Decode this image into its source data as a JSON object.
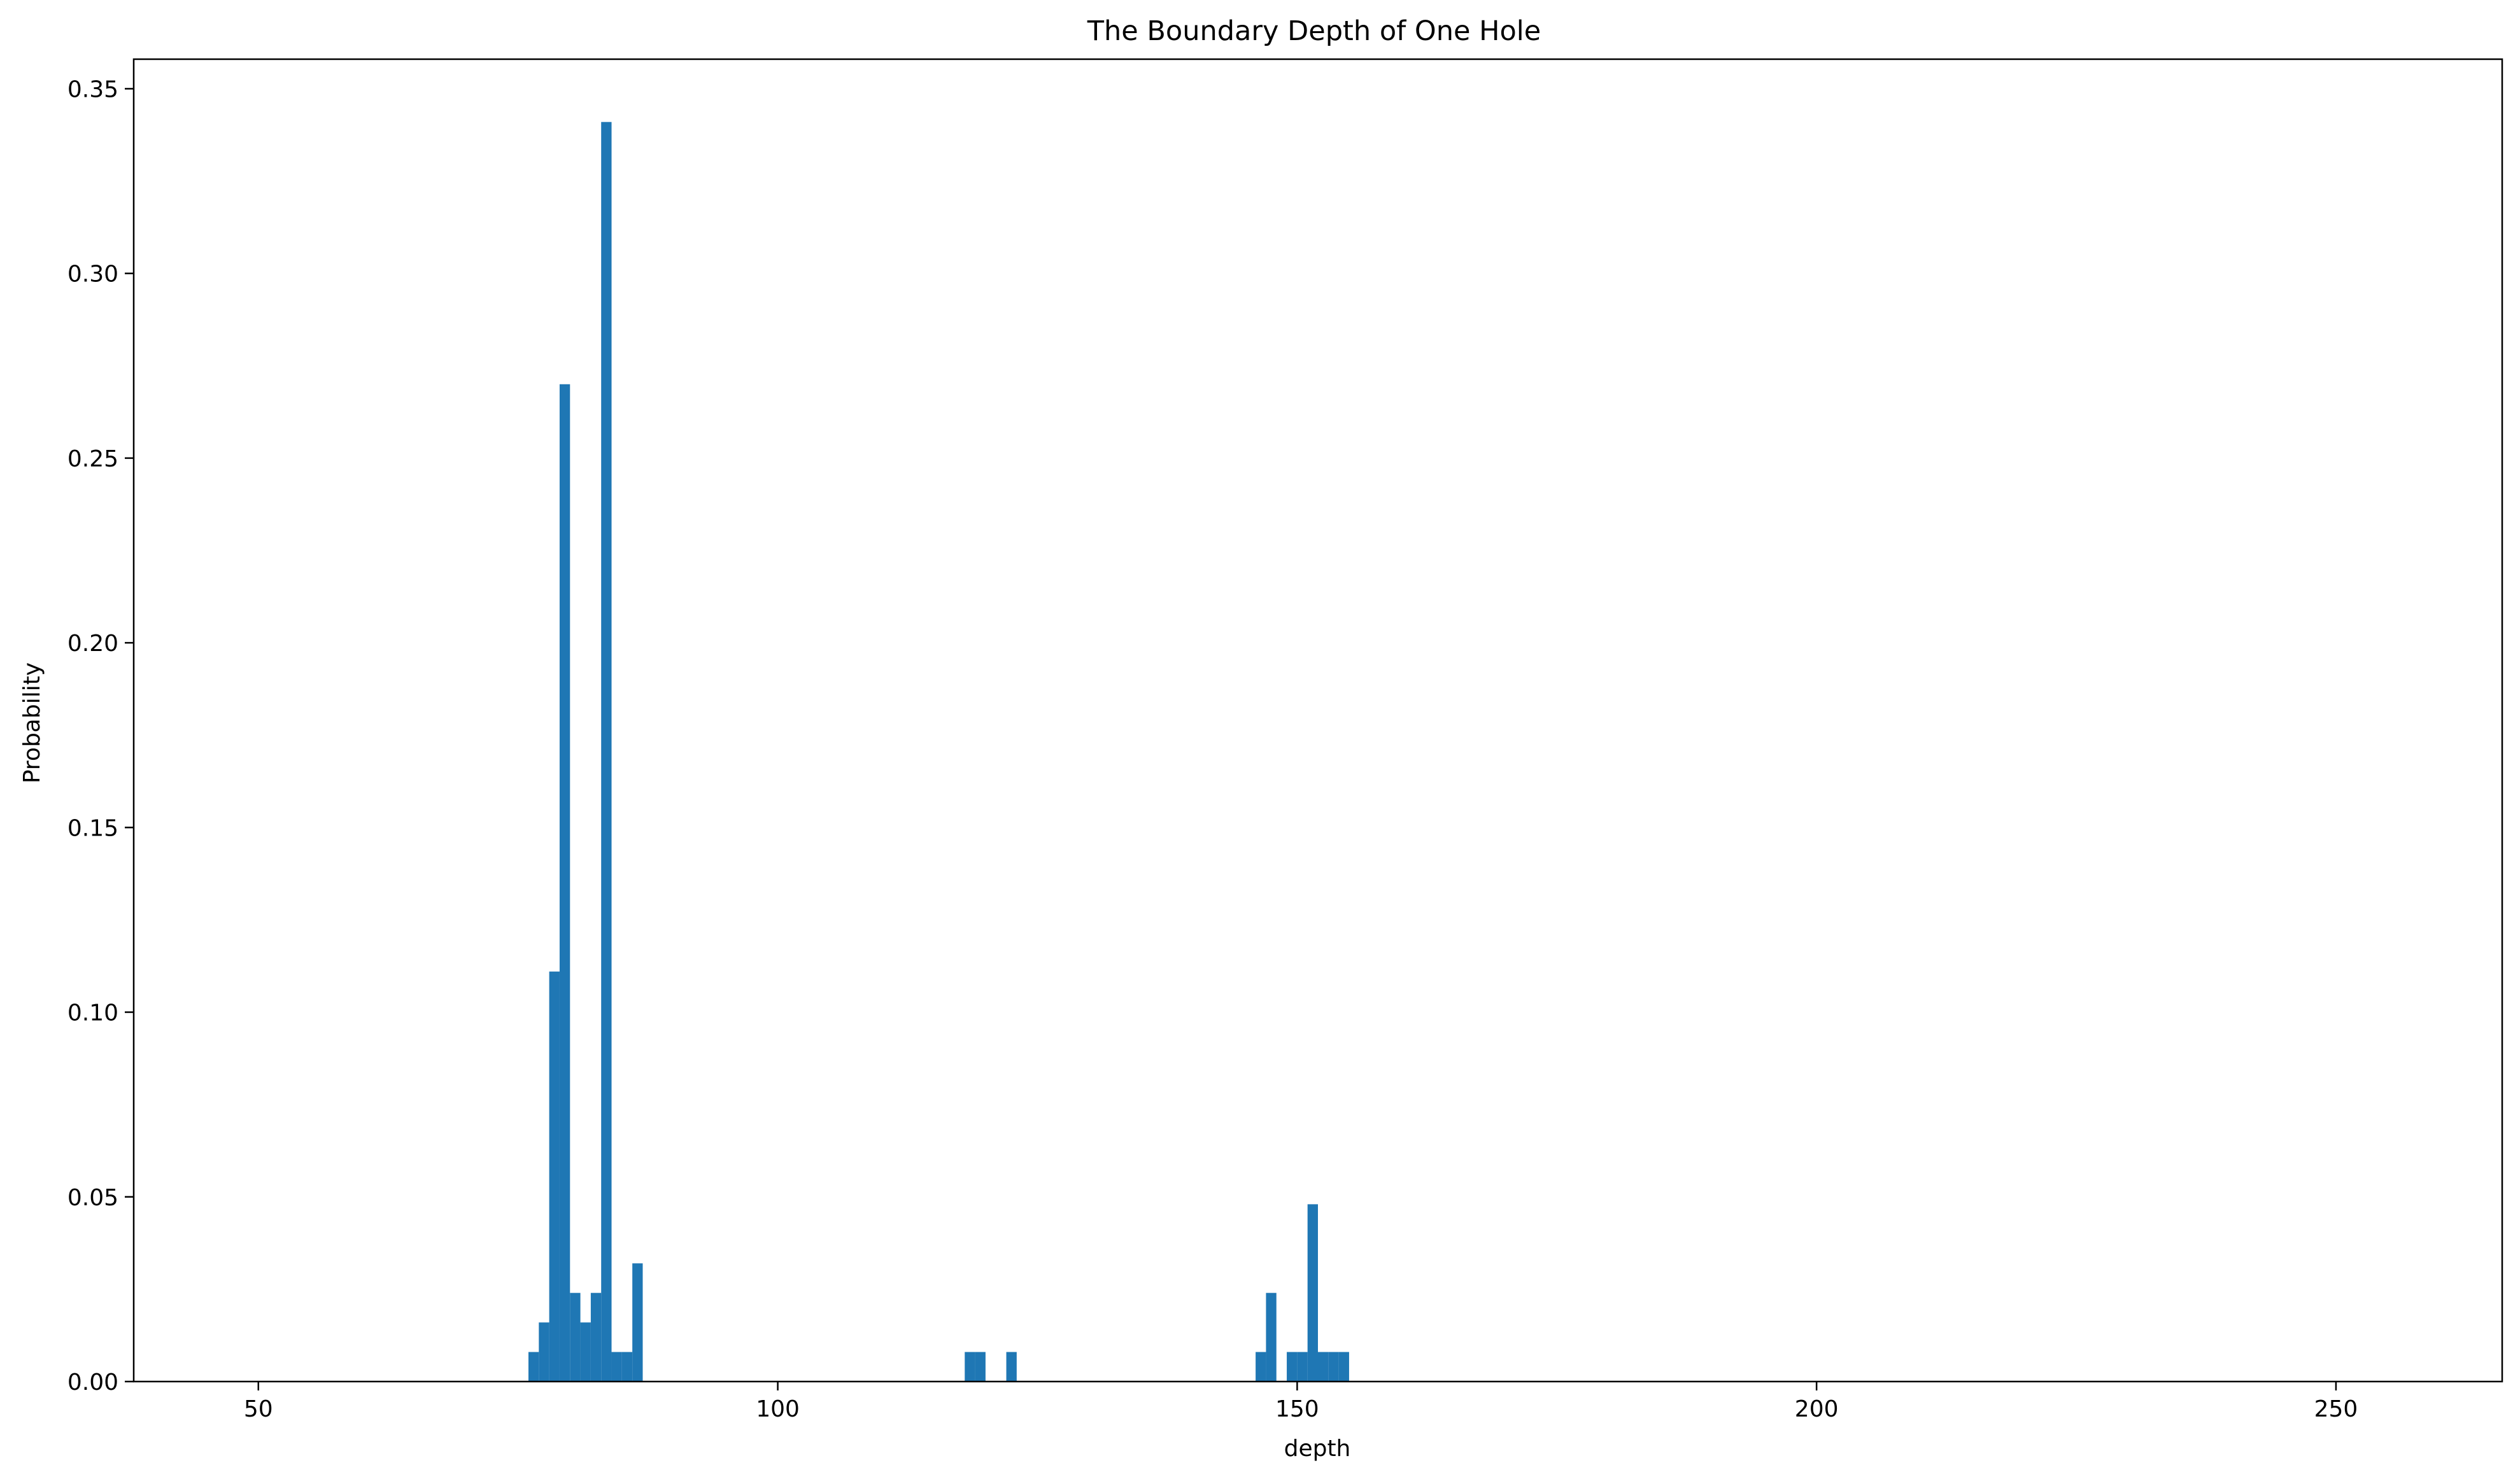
{
  "chart_data": {
    "type": "bar",
    "title": "The Boundary Depth of One Hole",
    "xlabel": "depth",
    "ylabel": "Probability",
    "xlim": [
      38,
      266
    ],
    "ylim": [
      0,
      0.358
    ],
    "xticks": [
      50,
      100,
      150,
      200,
      250
    ],
    "yticks": [
      0.0,
      0.05,
      0.1,
      0.15,
      0.2,
      0.25,
      0.3,
      0.35
    ],
    "ytick_labels": [
      "0.00",
      "0.05",
      "0.10",
      "0.15",
      "0.20",
      "0.25",
      "0.30",
      "0.35"
    ],
    "xtick_labels": [
      "50",
      "100",
      "150",
      "200",
      "250"
    ],
    "grid": false,
    "legend": null,
    "bar_color": "#1f77b4",
    "bin_width": 1,
    "bins": [
      {
        "x": 76,
        "value": 0.008
      },
      {
        "x": 77,
        "value": 0.016
      },
      {
        "x": 78,
        "value": 0.111
      },
      {
        "x": 79,
        "value": 0.27
      },
      {
        "x": 80,
        "value": 0.024
      },
      {
        "x": 81,
        "value": 0.016
      },
      {
        "x": 82,
        "value": 0.024
      },
      {
        "x": 83,
        "value": 0.341
      },
      {
        "x": 84,
        "value": 0.008
      },
      {
        "x": 85,
        "value": 0.008
      },
      {
        "x": 86,
        "value": 0.032
      },
      {
        "x": 118,
        "value": 0.008
      },
      {
        "x": 119,
        "value": 0.008
      },
      {
        "x": 122,
        "value": 0.008
      },
      {
        "x": 146,
        "value": 0.008
      },
      {
        "x": 147,
        "value": 0.024
      },
      {
        "x": 149,
        "value": 0.008
      },
      {
        "x": 150,
        "value": 0.008
      },
      {
        "x": 151,
        "value": 0.048
      },
      {
        "x": 152,
        "value": 0.008
      },
      {
        "x": 153,
        "value": 0.008
      },
      {
        "x": 154,
        "value": 0.008
      }
    ]
  }
}
